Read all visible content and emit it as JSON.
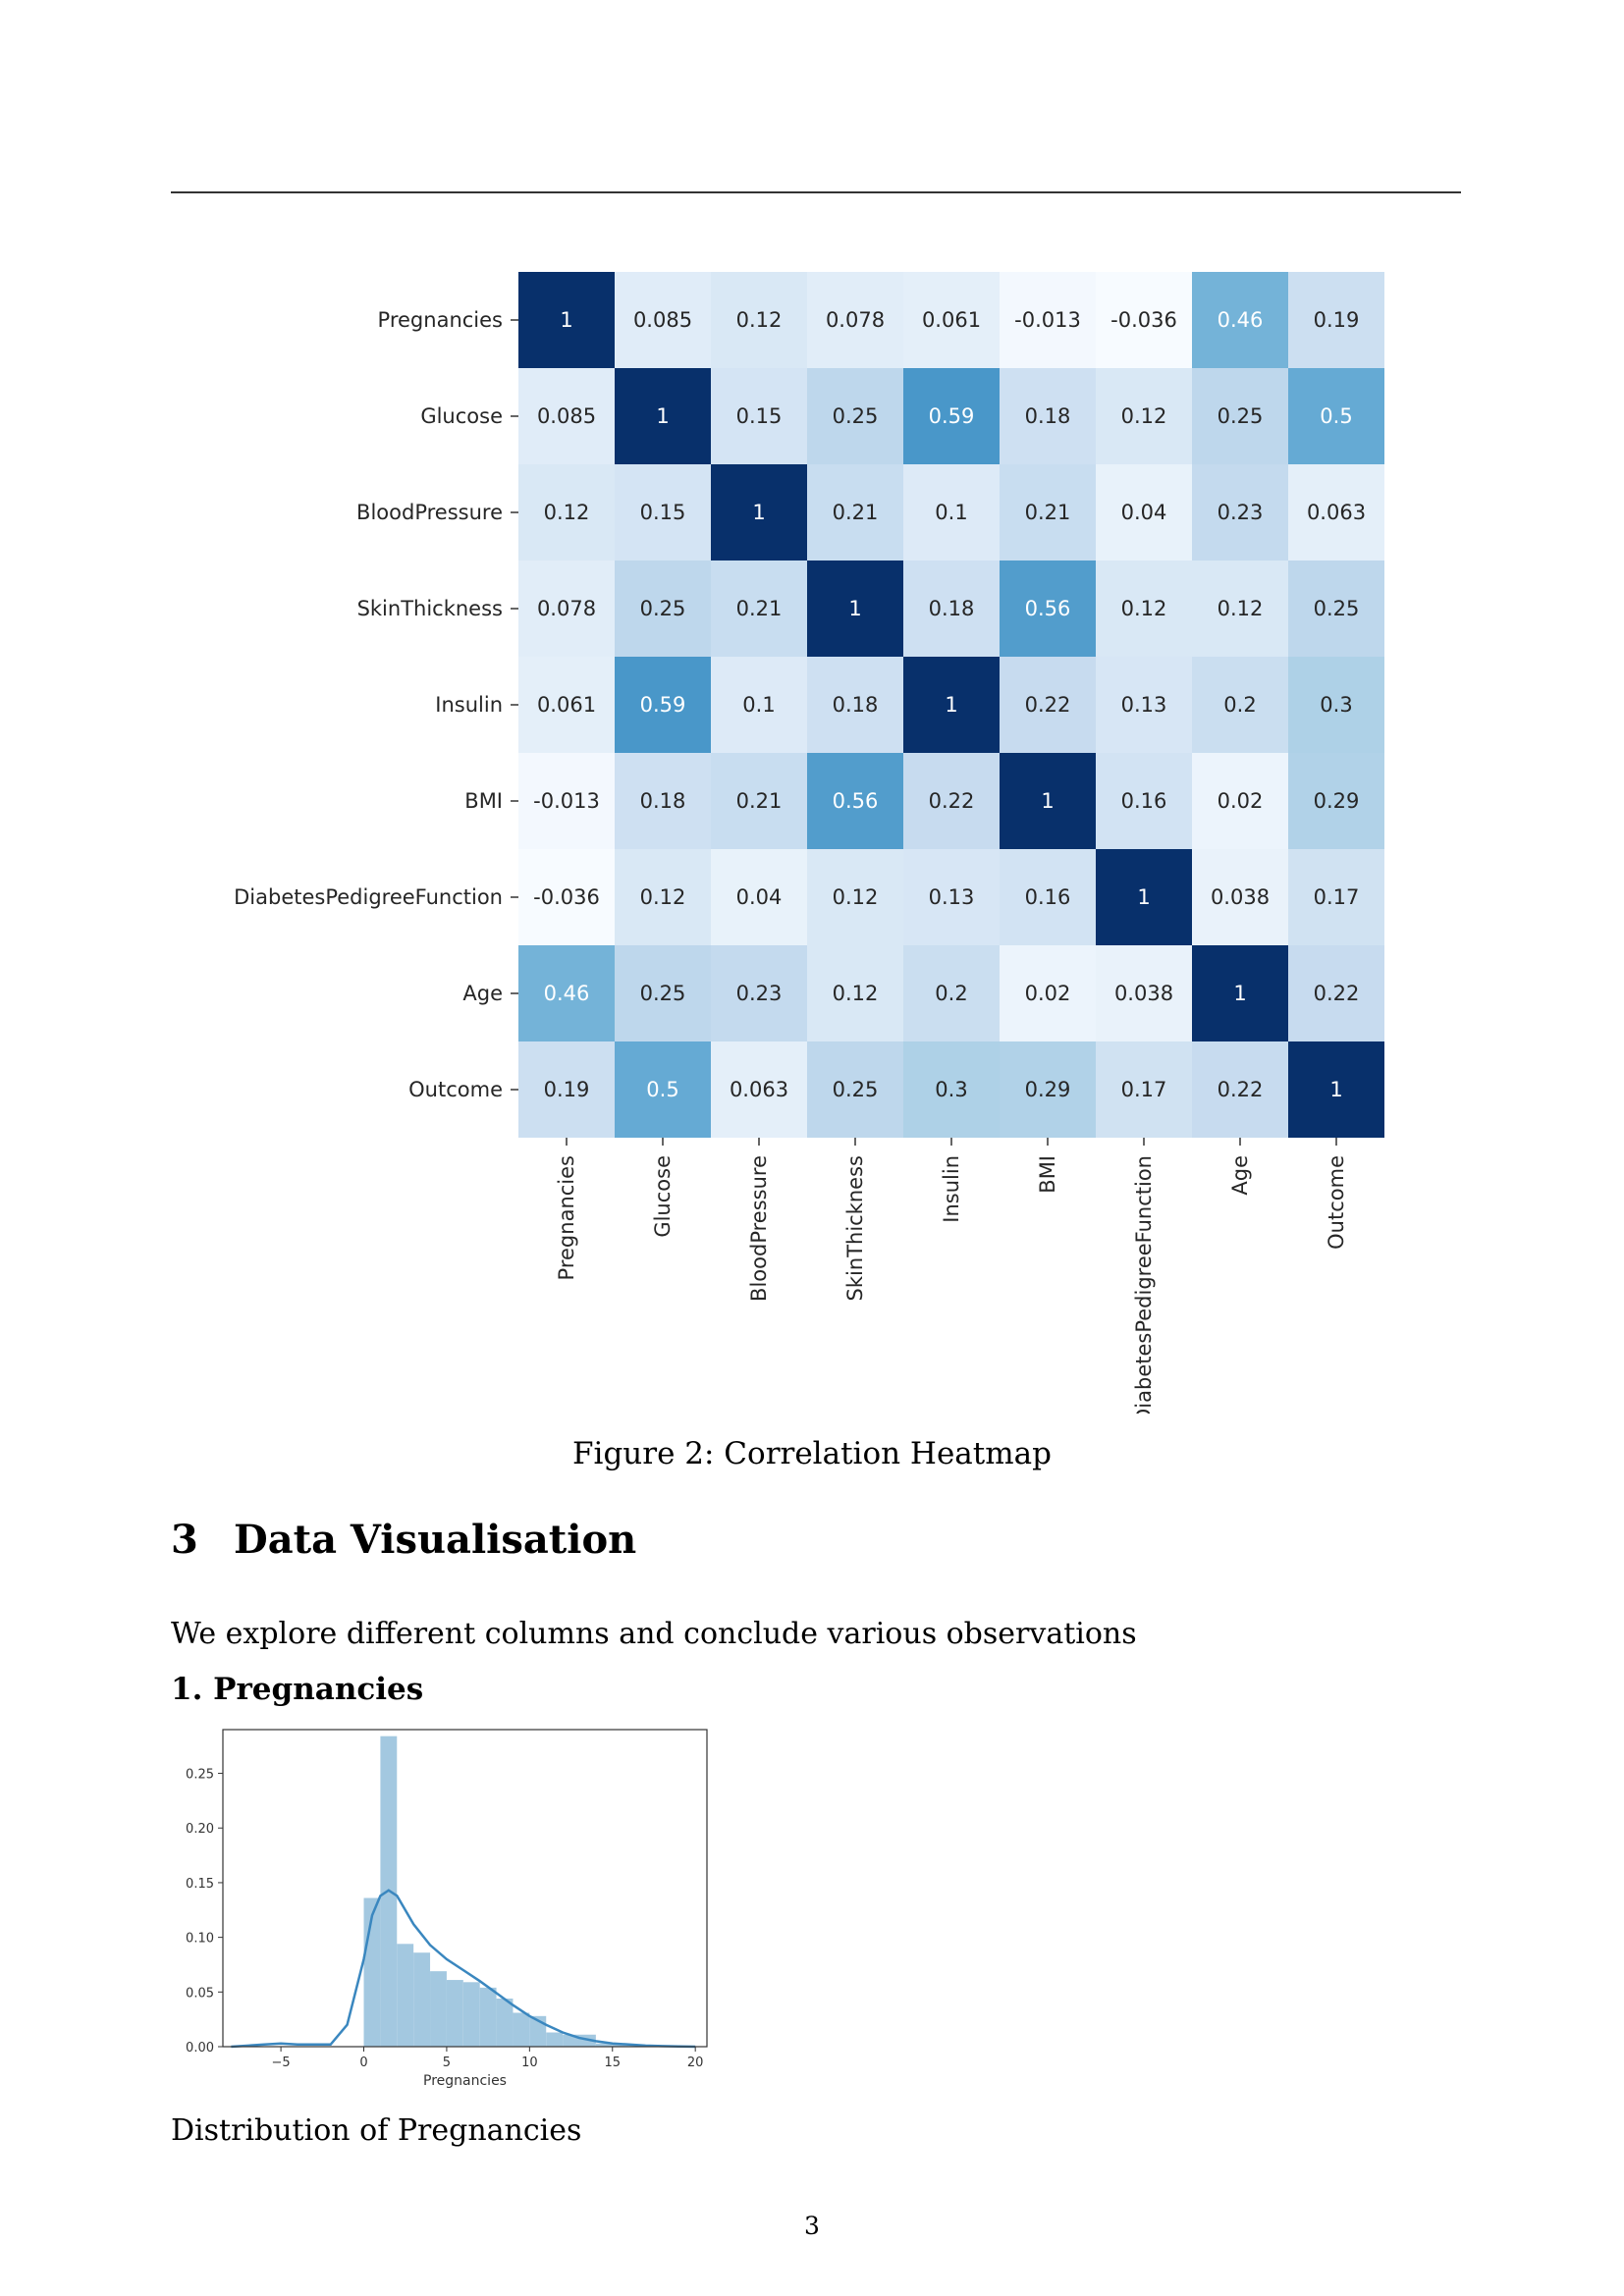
{
  "figure_caption": "Figure 2: Correlation Heatmap",
  "section": {
    "number": "3",
    "title": "Data Visualisation"
  },
  "intro_text": "We explore different columns and conclude various observations",
  "subsection_title": "1. Pregnancies",
  "histogram_caption": "Distribution of Pregnancies",
  "page_number": "3",
  "colors": {
    "heat_low": "#f7fbff",
    "heat_high": "#08306b",
    "hist_bar": "#a3c8e0",
    "kde_line": "#3a87bf"
  },
  "chart_data": [
    {
      "type": "heatmap",
      "labels": [
        "Pregnancies",
        "Glucose",
        "BloodPressure",
        "SkinThickness",
        "Insulin",
        "BMI",
        "DiabetesPedigreeFunction",
        "Age",
        "Outcome"
      ],
      "values": [
        [
          "1",
          "0.085",
          "0.12",
          "0.078",
          "0.061",
          "-0.013",
          "-0.036",
          "0.46",
          "0.19"
        ],
        [
          "0.085",
          "1",
          "0.15",
          "0.25",
          "0.59",
          "0.18",
          "0.12",
          "0.25",
          "0.5"
        ],
        [
          "0.12",
          "0.15",
          "1",
          "0.21",
          "0.1",
          "0.21",
          "0.04",
          "0.23",
          "0.063"
        ],
        [
          "0.078",
          "0.25",
          "0.21",
          "1",
          "0.18",
          "0.56",
          "0.12",
          "0.12",
          "0.25"
        ],
        [
          "0.061",
          "0.59",
          "0.1",
          "0.18",
          "1",
          "0.22",
          "0.13",
          "0.2",
          "0.3"
        ],
        [
          "-0.013",
          "0.18",
          "0.21",
          "0.56",
          "0.22",
          "1",
          "0.16",
          "0.02",
          "0.29"
        ],
        [
          "-0.036",
          "0.12",
          "0.04",
          "0.12",
          "0.13",
          "0.16",
          "1",
          "0.038",
          "0.17"
        ],
        [
          "0.46",
          "0.25",
          "0.23",
          "0.12",
          "0.2",
          "0.02",
          "0.038",
          "1",
          "0.22"
        ],
        [
          "0.19",
          "0.5",
          "0.063",
          "0.25",
          "0.3",
          "0.29",
          "0.17",
          "0.22",
          "1"
        ]
      ],
      "colormap": "Blues",
      "color_range": [
        -0.036,
        1
      ],
      "colorbar": false
    },
    {
      "type": "bar",
      "xlabel": "Pregnancies",
      "xlim": [
        -8.5,
        20.7
      ],
      "ylim": [
        0,
        0.29
      ],
      "xticks": [
        -5,
        0,
        5,
        10,
        15,
        20
      ],
      "xtick_labels": [
        "−5",
        "0",
        "5",
        "10",
        "15",
        "20"
      ],
      "yticks": [
        "0.00",
        "0.05",
        "0.10",
        "0.15",
        "0.20",
        "0.25"
      ],
      "bin_edges": [
        0,
        1,
        2,
        3,
        4,
        5,
        6,
        7,
        8,
        9,
        10,
        11,
        12,
        13,
        14,
        15,
        16,
        17
      ],
      "densities": [
        0.136,
        0.284,
        0.094,
        0.086,
        0.069,
        0.061,
        0.059,
        0.054,
        0.044,
        0.031,
        0.028,
        0.013,
        0.011,
        0.011,
        0.003,
        0.002,
        0.001
      ],
      "series": [
        {
          "type": "line",
          "x": [
            -8.0,
            -6.0,
            -5.0,
            -4.0,
            -2.0,
            -1.0,
            0.0,
            0.5,
            1.0,
            1.5,
            2.0,
            3.0,
            4.0,
            5.0,
            6.0,
            7.0,
            8.0,
            9.0,
            10.0,
            11.0,
            12.0,
            13.0,
            14.0,
            15.0,
            16.0,
            17.0,
            18.0,
            19.0,
            20.0
          ],
          "y": [
            0.0,
            0.002,
            0.003,
            0.002,
            0.002,
            0.02,
            0.08,
            0.12,
            0.138,
            0.143,
            0.138,
            0.112,
            0.093,
            0.08,
            0.07,
            0.06,
            0.049,
            0.038,
            0.028,
            0.02,
            0.013,
            0.008,
            0.005,
            0.003,
            0.002,
            0.001,
            0.0005,
            0.0002,
            0.0
          ]
        }
      ]
    }
  ]
}
